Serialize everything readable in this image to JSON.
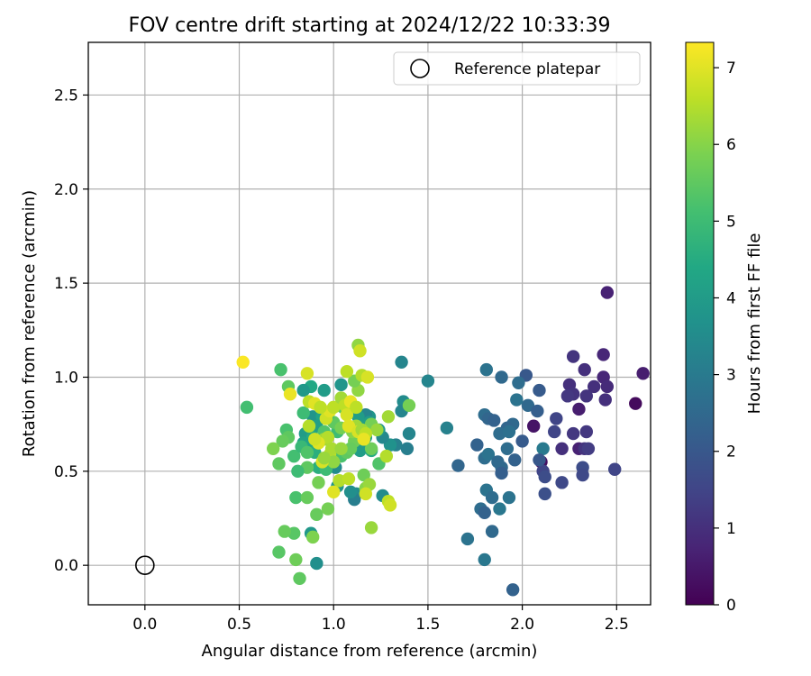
{
  "chart_data": {
    "type": "scatter",
    "title": "FOV centre drift starting at 2024/12/22 10:33:39",
    "xlabel": "Angular distance from reference (arcmin)",
    "ylabel": "Rotation from reference (arcmin)",
    "colorbar_label": "Hours from first FF file",
    "xlim": [
      -0.3,
      2.68
    ],
    "ylim": [
      -0.21,
      2.78
    ],
    "clim": [
      0,
      7.33
    ],
    "x_ticks": [
      "0.0",
      "0.5",
      "1.0",
      "1.5",
      "2.0",
      "2.5"
    ],
    "y_ticks": [
      "0.0",
      "0.5",
      "1.0",
      "1.5",
      "2.0",
      "2.5"
    ],
    "colorbar_ticks": [
      "0",
      "1",
      "2",
      "3",
      "4",
      "5",
      "6",
      "7"
    ],
    "grid": true,
    "legend_position": "top-right",
    "colormap": "viridis",
    "reference": {
      "label": "Reference platepar",
      "x": 0.0,
      "y": 0.0
    },
    "points": [
      [
        2.45,
        1.45,
        0.7
      ],
      [
        2.43,
        1.12,
        0.8
      ],
      [
        2.27,
        1.11,
        1.1
      ],
      [
        2.33,
        1.04,
        1.0
      ],
      [
        2.43,
        1.0,
        0.8
      ],
      [
        2.64,
        1.02,
        0.6
      ],
      [
        2.25,
        0.96,
        1.0
      ],
      [
        2.45,
        0.95,
        0.9
      ],
      [
        2.38,
        0.95,
        1.0
      ],
      [
        2.27,
        0.91,
        1.1
      ],
      [
        2.34,
        0.9,
        1.1
      ],
      [
        2.24,
        0.9,
        1.2
      ],
      [
        2.44,
        0.88,
        1.0
      ],
      [
        2.6,
        0.86,
        0.2
      ],
      [
        2.3,
        0.83,
        0.6
      ],
      [
        2.18,
        0.78,
        1.5
      ],
      [
        2.34,
        0.71,
        1.2
      ],
      [
        2.27,
        0.7,
        1.2
      ],
      [
        2.17,
        0.71,
        1.5
      ],
      [
        2.06,
        0.74,
        0.4
      ],
      [
        2.21,
        0.62,
        1.0
      ],
      [
        2.3,
        0.62,
        0.7
      ],
      [
        2.33,
        0.62,
        1.1
      ],
      [
        2.35,
        0.62,
        1.3
      ],
      [
        2.1,
        0.55,
        0.3
      ],
      [
        2.11,
        0.5,
        1.5
      ],
      [
        2.32,
        0.52,
        1.7
      ],
      [
        2.49,
        0.51,
        1.5
      ],
      [
        2.32,
        0.48,
        1.6
      ],
      [
        2.12,
        0.47,
        1.7
      ],
      [
        2.21,
        0.44,
        1.6
      ],
      [
        2.12,
        0.38,
        1.8
      ],
      [
        2.02,
        1.01,
        2.0
      ],
      [
        1.98,
        0.97,
        2.6
      ],
      [
        1.89,
        1.0,
        2.5
      ],
      [
        2.09,
        0.93,
        2.1
      ],
      [
        1.81,
        1.04,
        2.8
      ],
      [
        2.03,
        0.85,
        2.5
      ],
      [
        1.97,
        0.88,
        2.8
      ],
      [
        2.08,
        0.82,
        2.2
      ],
      [
        1.8,
        0.8,
        2.6
      ],
      [
        1.82,
        0.78,
        2.4
      ],
      [
        1.85,
        0.77,
        2.3
      ],
      [
        1.95,
        0.75,
        2.5
      ],
      [
        1.92,
        0.73,
        2.4
      ],
      [
        1.88,
        0.7,
        2.6
      ],
      [
        1.93,
        0.71,
        2.7
      ],
      [
        2.0,
        0.66,
        2.1
      ],
      [
        1.76,
        0.64,
        2.3
      ],
      [
        1.92,
        0.62,
        2.6
      ],
      [
        2.11,
        0.62,
        3.0
      ],
      [
        1.8,
        0.57,
        2.6
      ],
      [
        1.82,
        0.59,
        2.8
      ],
      [
        1.87,
        0.55,
        2.5
      ],
      [
        1.89,
        0.52,
        2.5
      ],
      [
        1.89,
        0.49,
        2.2
      ],
      [
        1.96,
        0.56,
        2.3
      ],
      [
        2.09,
        0.56,
        2.0
      ],
      [
        1.66,
        0.53,
        2.4
      ],
      [
        1.6,
        0.73,
        3.2
      ],
      [
        1.81,
        0.4,
        2.8
      ],
      [
        1.84,
        0.36,
        2.6
      ],
      [
        1.93,
        0.36,
        2.8
      ],
      [
        1.78,
        0.3,
        2.6
      ],
      [
        1.88,
        0.3,
        2.9
      ],
      [
        1.8,
        0.28,
        2.3
      ],
      [
        1.84,
        0.18,
        2.5
      ],
      [
        1.71,
        0.14,
        2.8
      ],
      [
        1.8,
        0.03,
        2.9
      ],
      [
        1.95,
        -0.13,
        2.3
      ],
      [
        1.36,
        1.08,
        3.3
      ],
      [
        1.5,
        0.98,
        3.3
      ],
      [
        1.37,
        0.87,
        3.5
      ],
      [
        1.36,
        0.82,
        3.3
      ],
      [
        1.4,
        0.7,
        3.3
      ],
      [
        1.39,
        0.62,
        3.1
      ],
      [
        1.33,
        0.64,
        3.2
      ],
      [
        1.3,
        0.64,
        3.7
      ],
      [
        1.26,
        0.68,
        3.4
      ],
      [
        1.24,
        0.72,
        3.9
      ],
      [
        1.19,
        0.79,
        3.8
      ],
      [
        1.17,
        0.8,
        3.3
      ],
      [
        1.13,
        0.79,
        4.0
      ],
      [
        1.19,
        0.76,
        4.0
      ],
      [
        1.16,
        0.74,
        4.1
      ],
      [
        1.13,
        0.72,
        4.0
      ],
      [
        1.17,
        0.68,
        4.2
      ],
      [
        1.16,
        0.63,
        4.0
      ],
      [
        1.2,
        0.61,
        4.5
      ],
      [
        1.14,
        0.61,
        4.0
      ],
      [
        1.26,
        0.37,
        3.5
      ],
      [
        1.12,
        0.38,
        3.5
      ],
      [
        1.11,
        0.35,
        3.1
      ],
      [
        1.09,
        0.39,
        3.6
      ],
      [
        1.02,
        0.42,
        3.8
      ],
      [
        1.01,
        0.52,
        3.5
      ],
      [
        1.04,
        0.96,
        3.8
      ],
      [
        0.95,
        0.93,
        4.0
      ],
      [
        0.88,
        0.95,
        4.4
      ],
      [
        0.84,
        0.93,
        3.9
      ],
      [
        0.89,
        0.79,
        3.8
      ],
      [
        0.94,
        0.79,
        4.3
      ],
      [
        0.91,
        0.74,
        4.1
      ],
      [
        0.85,
        0.7,
        4.0
      ],
      [
        0.89,
        0.68,
        4.5
      ],
      [
        0.84,
        0.65,
        4.2
      ],
      [
        0.88,
        0.62,
        4.3
      ],
      [
        0.9,
        0.6,
        4.6
      ],
      [
        0.92,
        0.52,
        4.6
      ],
      [
        0.88,
        0.17,
        3.9
      ],
      [
        0.91,
        0.01,
        3.6
      ],
      [
        0.72,
        1.04,
        5.2
      ],
      [
        0.76,
        0.95,
        5.5
      ],
      [
        0.84,
        0.81,
        5.0
      ],
      [
        0.75,
        0.72,
        5.2
      ],
      [
        0.76,
        0.68,
        5.5
      ],
      [
        0.73,
        0.66,
        5.6
      ],
      [
        0.79,
        0.58,
        5.1
      ],
      [
        0.83,
        0.63,
        4.9
      ],
      [
        0.86,
        0.6,
        5.3
      ],
      [
        0.86,
        0.52,
        5.5
      ],
      [
        0.81,
        0.5,
        5.0
      ],
      [
        0.71,
        0.54,
        5.5
      ],
      [
        0.68,
        0.62,
        5.9
      ],
      [
        0.8,
        0.36,
        5.2
      ],
      [
        0.86,
        0.36,
        5.6
      ],
      [
        0.92,
        0.44,
        5.8
      ],
      [
        0.91,
        0.27,
        5.6
      ],
      [
        0.97,
        0.3,
        5.8
      ],
      [
        0.79,
        0.17,
        5.4
      ],
      [
        0.74,
        0.18,
        5.6
      ],
      [
        0.89,
        0.15,
        5.9
      ],
      [
        0.71,
        0.07,
        5.4
      ],
      [
        0.8,
        0.03,
        5.7
      ],
      [
        0.82,
        -0.07,
        5.5
      ],
      [
        0.54,
        0.84,
        5.1
      ],
      [
        0.96,
        0.51,
        5.0
      ],
      [
        1.04,
        0.58,
        5.2
      ],
      [
        1.07,
        0.6,
        5.5
      ],
      [
        1.11,
        0.66,
        5.7
      ],
      [
        0.95,
        0.71,
        5.3
      ],
      [
        1.02,
        0.71,
        5.0
      ],
      [
        1.0,
        0.76,
        5.5
      ],
      [
        0.97,
        0.8,
        5.1
      ],
      [
        1.05,
        0.84,
        5.5
      ],
      [
        1.04,
        0.73,
        5.8
      ],
      [
        1.1,
        0.71,
        6.0
      ],
      [
        1.09,
        0.62,
        5.6
      ],
      [
        1.2,
        0.62,
        5.7
      ],
      [
        1.24,
        0.54,
        5.3
      ],
      [
        1.16,
        0.48,
        5.7
      ],
      [
        1.17,
        0.41,
        6.0
      ],
      [
        1.19,
        0.43,
        6.2
      ],
      [
        1.13,
        0.93,
        6.1
      ],
      [
        1.11,
        0.98,
        5.8
      ],
      [
        1.2,
        0.75,
        5.8
      ],
      [
        1.23,
        0.72,
        6.2
      ],
      [
        1.12,
        0.74,
        6.3
      ],
      [
        1.4,
        0.85,
        5.8
      ],
      [
        1.28,
        0.58,
        6.5
      ],
      [
        1.2,
        0.2,
        6.2
      ],
      [
        1.29,
        0.79,
        6.3
      ],
      [
        1.29,
        0.34,
        6.6
      ],
      [
        1.3,
        0.32,
        6.8
      ],
      [
        0.95,
        0.67,
        6.3
      ],
      [
        0.97,
        0.68,
        6.5
      ],
      [
        0.98,
        0.59,
        6.6
      ],
      [
        0.99,
        0.62,
        6.4
      ],
      [
        1.04,
        0.62,
        6.2
      ],
      [
        1.0,
        0.55,
        6.1
      ],
      [
        1.03,
        0.45,
        6.5
      ],
      [
        1.08,
        0.46,
        6.6
      ],
      [
        0.94,
        0.55,
        6.9
      ],
      [
        0.95,
        0.57,
        6.2
      ],
      [
        0.96,
        0.78,
        6.8
      ],
      [
        0.98,
        0.82,
        7.0
      ],
      [
        1.0,
        0.84,
        6.6
      ],
      [
        1.04,
        0.89,
        6.3
      ],
      [
        1.06,
        0.85,
        6.6
      ],
      [
        1.07,
        0.8,
        6.9
      ],
      [
        1.09,
        0.87,
        7.1
      ],
      [
        1.12,
        0.84,
        6.6
      ],
      [
        1.08,
        0.74,
        7.0
      ],
      [
        1.13,
        0.71,
        6.9
      ],
      [
        1.15,
        0.72,
        6.3
      ],
      [
        1.17,
        0.7,
        6.6
      ],
      [
        1.16,
        0.67,
        7.1
      ],
      [
        0.87,
        0.74,
        6.5
      ],
      [
        0.87,
        0.87,
        6.6
      ],
      [
        0.9,
        0.86,
        7.0
      ],
      [
        0.93,
        0.84,
        6.6
      ],
      [
        0.92,
        0.65,
        7.0
      ],
      [
        0.9,
        0.67,
        6.8
      ],
      [
        0.86,
        1.02,
        6.9
      ],
      [
        0.77,
        0.91,
        7.1
      ],
      [
        0.52,
        1.08,
        7.3
      ],
      [
        1.07,
        1.03,
        6.6
      ],
      [
        1.13,
        1.17,
        6.1
      ],
      [
        1.14,
        1.14,
        6.8
      ],
      [
        1.15,
        1.01,
        6.5
      ],
      [
        1.18,
        1.0,
        6.9
      ],
      [
        1.17,
        0.38,
        6.8
      ],
      [
        1.0,
        0.39,
        7.0
      ]
    ]
  }
}
